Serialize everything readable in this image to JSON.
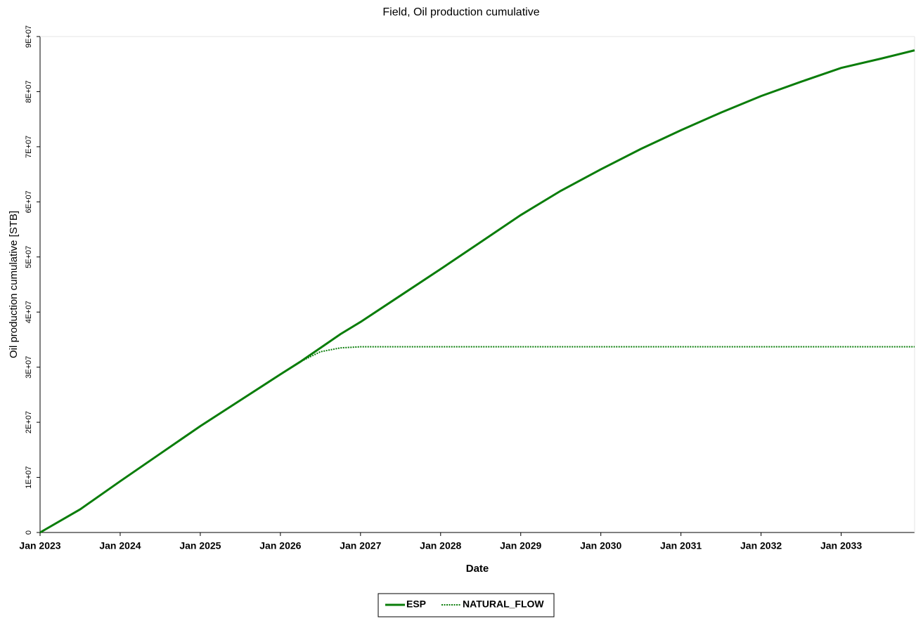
{
  "chart_data": {
    "type": "line",
    "title": "Field, Oil production cumulative",
    "x_label": "Date",
    "y_label": "Oil production cumulative [STB]",
    "x": [
      "2023-01",
      "2023-07",
      "2024-01",
      "2024-07",
      "2025-01",
      "2025-07",
      "2026-01",
      "2026-04",
      "2026-07",
      "2026-10",
      "2027-01",
      "2027-07",
      "2028-01",
      "2028-07",
      "2029-01",
      "2029-07",
      "2030-01",
      "2030-07",
      "2031-01",
      "2031-07",
      "2032-01",
      "2032-07",
      "2033-01",
      "2033-07",
      "2033-12"
    ],
    "series": [
      {
        "name": "ESP",
        "color": "#0a7d0a",
        "style": "solid",
        "values": [
          0,
          4200000,
          9300000,
          14300000,
          19300000,
          24000000,
          28700000,
          31000000,
          33500000,
          36000000,
          38200000,
          43000000,
          47800000,
          52700000,
          57600000,
          62000000,
          65900000,
          69600000,
          73000000,
          76200000,
          79200000,
          81800000,
          84300000,
          86000000,
          87500000
        ]
      },
      {
        "name": "NATURAL_FLOW",
        "color": "#0a7d0a",
        "style": "dotted",
        "values": [
          0,
          4200000,
          9300000,
          14300000,
          19300000,
          24000000,
          28700000,
          31000000,
          32800000,
          33500000,
          33700000,
          33700000,
          33700000,
          33700000,
          33700000,
          33700000,
          33700000,
          33700000,
          33700000,
          33700000,
          33700000,
          33700000,
          33700000,
          33700000,
          33700000
        ]
      }
    ],
    "xlim": [
      "2023-01",
      "2033-12"
    ],
    "xticks": [
      {
        "value": "2023-01",
        "label": "Jan 2023"
      },
      {
        "value": "2024-01",
        "label": "Jan 2024"
      },
      {
        "value": "2025-01",
        "label": "Jan 2025"
      },
      {
        "value": "2026-01",
        "label": "Jan 2026"
      },
      {
        "value": "2027-01",
        "label": "Jan 2027"
      },
      {
        "value": "2028-01",
        "label": "Jan 2028"
      },
      {
        "value": "2029-01",
        "label": "Jan 2029"
      },
      {
        "value": "2030-01",
        "label": "Jan 2030"
      },
      {
        "value": "2031-01",
        "label": "Jan 2031"
      },
      {
        "value": "2032-01",
        "label": "Jan 2032"
      },
      {
        "value": "2033-01",
        "label": "Jan 2033"
      }
    ],
    "ylim": [
      0,
      90000000
    ],
    "yticks": [
      0,
      {
        "value": 10000000,
        "label": "1E+07"
      },
      {
        "value": 20000000,
        "label": "2E+07"
      },
      {
        "value": 30000000,
        "label": "3E+07"
      },
      {
        "value": 40000000,
        "label": "4E+07"
      },
      {
        "value": 50000000,
        "label": "5E+07"
      },
      {
        "value": 60000000,
        "label": "6E+07"
      },
      {
        "value": 70000000,
        "label": "7E+07"
      },
      {
        "value": 80000000,
        "label": "8E+07"
      },
      {
        "value": 90000000,
        "label": "9E+07"
      }
    ],
    "grid": false,
    "legend": "bottom"
  }
}
